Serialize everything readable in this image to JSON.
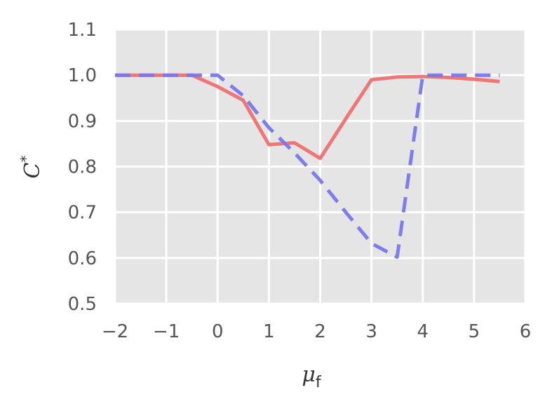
{
  "chart_data": {
    "type": "line",
    "xlabel": "μf",
    "ylabel": "C*",
    "xlim": [
      -2,
      6
    ],
    "ylim": [
      0.5,
      1.1
    ],
    "xticks": [
      -2,
      -1,
      0,
      1,
      2,
      3,
      4,
      5,
      6
    ],
    "xtick_labels": [
      "−2",
      "−1",
      "0",
      "1",
      "2",
      "3",
      "4",
      "5",
      "6"
    ],
    "yticks": [
      0.5,
      0.6,
      0.7,
      0.8,
      0.9,
      1.0,
      1.1
    ],
    "ytick_labels": [
      "0.5",
      "0.6",
      "0.7",
      "0.8",
      "0.9",
      "1.0",
      "1.1"
    ],
    "grid": true,
    "background": "#e5e5e5",
    "series": [
      {
        "color": "#f07070",
        "style": "solid",
        "x": [
          -2,
          -1.5,
          -1,
          -0.5,
          0,
          0.5,
          1,
          1.5,
          2,
          2.5,
          3,
          3.5,
          4,
          4.5,
          5,
          5.5
        ],
        "y": [
          1.0,
          1.0,
          1.0,
          1.0,
          0.975,
          0.945,
          0.848,
          0.852,
          0.818,
          0.905,
          0.99,
          0.996,
          0.997,
          0.995,
          0.991,
          0.986
        ]
      },
      {
        "color": "#7777f0",
        "style": "dashed",
        "x": [
          -2,
          -1.5,
          -1,
          -0.5,
          0,
          0.5,
          1,
          1.5,
          2,
          2.5,
          3,
          3.5,
          4,
          4.5,
          5,
          5.5
        ],
        "y": [
          1.0,
          1.0,
          1.0,
          1.0,
          1.0,
          0.955,
          0.885,
          0.83,
          0.77,
          0.7,
          0.632,
          0.602,
          1.0,
          1.0,
          1.0,
          1.0
        ]
      }
    ]
  }
}
